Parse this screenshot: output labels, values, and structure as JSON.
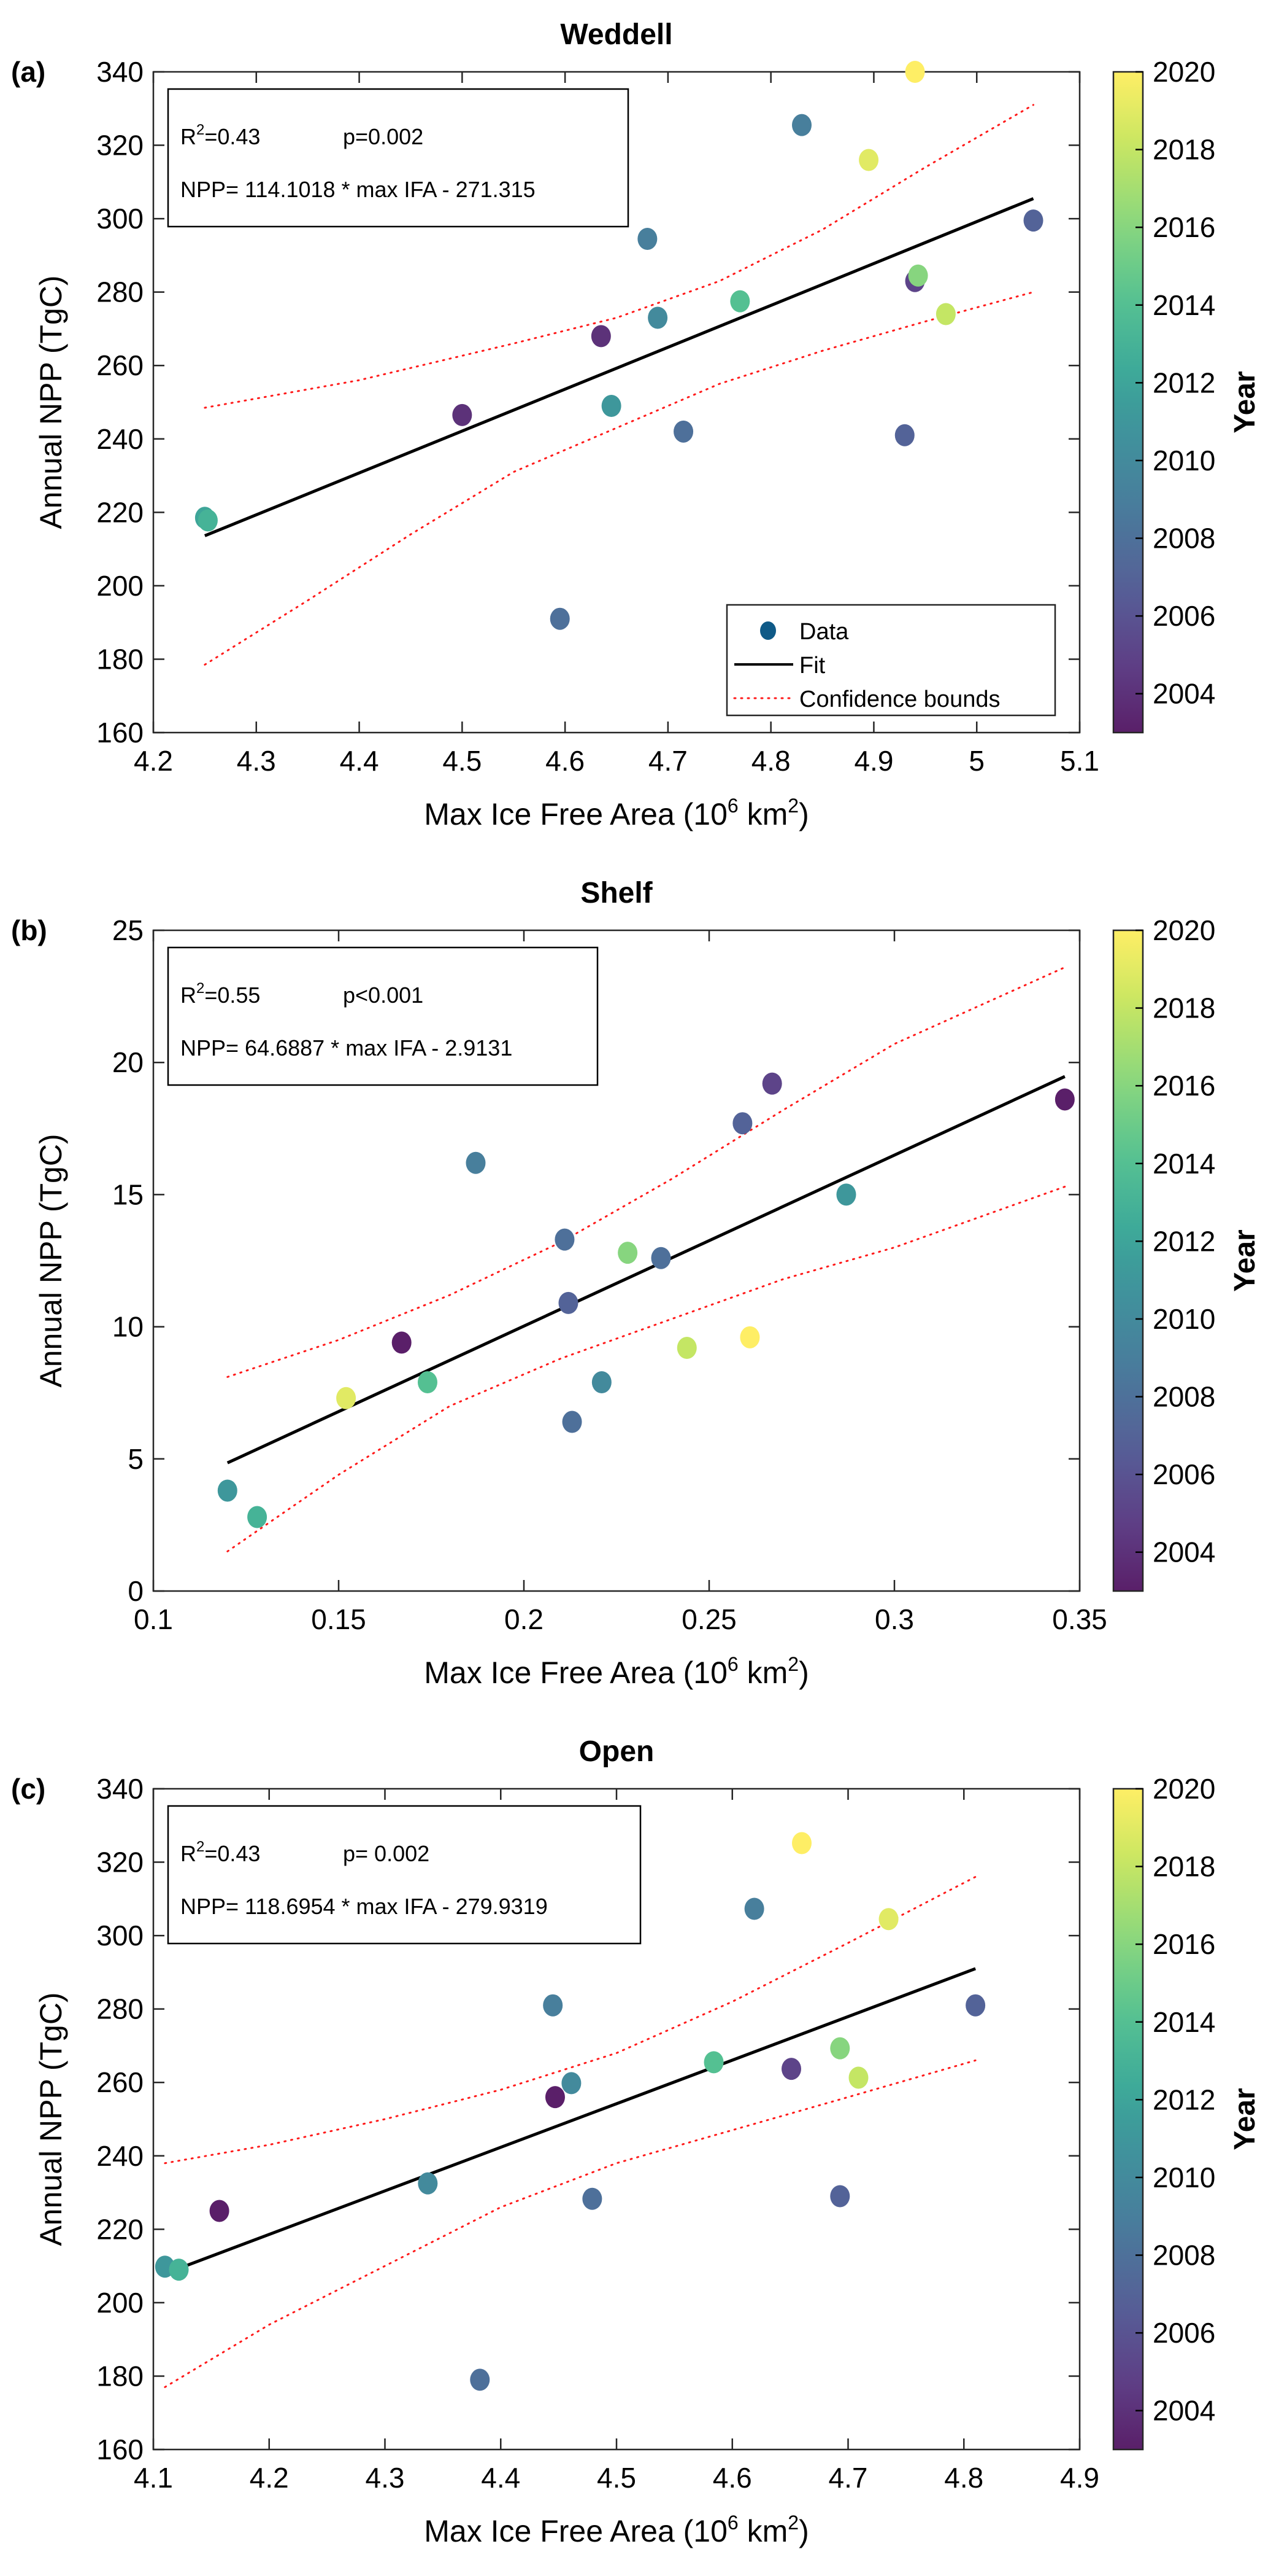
{
  "colorbar": {
    "title": "Year",
    "range": [
      2003,
      2020
    ],
    "ticks": [
      "2004",
      "2006",
      "2008",
      "2010",
      "2012",
      "2014",
      "2016",
      "2018",
      "2020"
    ],
    "colormap": "viridis"
  },
  "legend_a": {
    "entries": [
      "Data",
      "Fit",
      "Confidence bounds"
    ],
    "placement": "bottom-right"
  },
  "chart_data": [
    {
      "type": "scatter",
      "panel_tag": "(a)",
      "title": "Weddell",
      "xlabel": "Max Ice Free Area (10^6 km^2)",
      "xlabel_parts": [
        "Max Ice Free Area (10",
        "6",
        " km",
        "2",
        ")"
      ],
      "ylabel": "Annual NPP (TgC)",
      "xlim": [
        4.2,
        5.1
      ],
      "ylim": [
        160,
        340
      ],
      "xticks": [
        "4.2",
        "4.3",
        "4.4",
        "4.5",
        "4.6",
        "4.7",
        "4.8",
        "4.9",
        "5",
        "5.1"
      ],
      "yticks": [
        "160",
        "180",
        "200",
        "220",
        "240",
        "260",
        "280",
        "300",
        "320",
        "340"
      ],
      "stats": {
        "r2_label": "R",
        "r2_sup": "2",
        "r2_value": "=0.43",
        "p": "p=0.002",
        "equation": "NPP= 114.1018 * max IFA - 271.315"
      },
      "fit": {
        "slope": 114.1018,
        "intercept": -271.315,
        "x_range": [
          4.25,
          5.055
        ]
      },
      "confidence_bounds": {
        "upper": [
          [
            4.25,
            248.5
          ],
          [
            4.4,
            256
          ],
          [
            4.55,
            266
          ],
          [
            4.65,
            273
          ],
          [
            4.75,
            283
          ],
          [
            4.85,
            297
          ],
          [
            4.95,
            314
          ],
          [
            5.055,
            331
          ]
        ],
        "lower": [
          [
            4.25,
            178.5
          ],
          [
            4.35,
            196
          ],
          [
            4.45,
            214
          ],
          [
            4.55,
            231
          ],
          [
            4.65,
            243
          ],
          [
            4.75,
            255
          ],
          [
            4.85,
            264
          ],
          [
            4.95,
            272
          ],
          [
            5.055,
            280
          ]
        ]
      },
      "points": [
        {
          "x": 4.25,
          "y": 218.5,
          "year": 2012
        },
        {
          "x": 4.253,
          "y": 217.8,
          "year": 2013
        },
        {
          "x": 4.5,
          "y": 246.5,
          "year": 2004
        },
        {
          "x": 4.595,
          "y": 191,
          "year": 2008
        },
        {
          "x": 4.635,
          "y": 268,
          "year": 2004
        },
        {
          "x": 4.645,
          "y": 249,
          "year": 2011
        },
        {
          "x": 4.68,
          "y": 294.5,
          "year": 2009
        },
        {
          "x": 4.69,
          "y": 273,
          "year": 2010
        },
        {
          "x": 4.715,
          "y": 242,
          "year": 2008
        },
        {
          "x": 4.77,
          "y": 277.5,
          "year": 2014
        },
        {
          "x": 4.83,
          "y": 325.5,
          "year": 2009
        },
        {
          "x": 4.895,
          "y": 316,
          "year": 2019
        },
        {
          "x": 4.93,
          "y": 241,
          "year": 2007
        },
        {
          "x": 4.94,
          "y": 283,
          "year": 2005
        },
        {
          "x": 4.943,
          "y": 284.5,
          "year": 2016
        },
        {
          "x": 4.94,
          "y": 340,
          "year": 2020
        },
        {
          "x": 4.97,
          "y": 274,
          "year": 2018
        },
        {
          "x": 5.055,
          "y": 299.5,
          "year": 2007
        }
      ]
    },
    {
      "type": "scatter",
      "panel_tag": "(b)",
      "title": "Shelf",
      "xlabel": "Max Ice Free Area (10^6 km^2)",
      "xlabel_parts": [
        "Max Ice Free Area (10",
        "6",
        " km",
        "2",
        ")"
      ],
      "ylabel": "Annual NPP (TgC)",
      "xlim": [
        0.1,
        0.35
      ],
      "ylim": [
        0,
        25
      ],
      "xticks": [
        "0.1",
        "0.15",
        "0.2",
        "0.25",
        "0.3",
        "0.35"
      ],
      "yticks": [
        "0",
        "5",
        "10",
        "15",
        "20",
        "25"
      ],
      "stats": {
        "r2_label": "R",
        "r2_sup": "2",
        "r2_value": "=0.55",
        "p": "p<0.001",
        "equation": "NPP= 64.6887 * max IFA - 2.9131"
      },
      "fit": {
        "slope": 64.6887,
        "intercept": -2.9131,
        "x_range": [
          0.12,
          0.346
        ]
      },
      "confidence_bounds": {
        "upper": [
          [
            0.12,
            8.1
          ],
          [
            0.15,
            9.5
          ],
          [
            0.18,
            11.2
          ],
          [
            0.21,
            13.2
          ],
          [
            0.24,
            15.6
          ],
          [
            0.27,
            18.2
          ],
          [
            0.3,
            20.7
          ],
          [
            0.346,
            23.6
          ]
        ],
        "lower": [
          [
            0.12,
            1.5
          ],
          [
            0.15,
            4.4
          ],
          [
            0.18,
            7.0
          ],
          [
            0.21,
            8.8
          ],
          [
            0.24,
            10.3
          ],
          [
            0.27,
            11.8
          ],
          [
            0.3,
            13.0
          ],
          [
            0.346,
            15.3
          ]
        ]
      },
      "points": [
        {
          "x": 0.12,
          "y": 3.8,
          "year": 2011
        },
        {
          "x": 0.128,
          "y": 2.8,
          "year": 2013
        },
        {
          "x": 0.152,
          "y": 7.3,
          "year": 2019
        },
        {
          "x": 0.167,
          "y": 9.4,
          "year": 2003
        },
        {
          "x": 0.174,
          "y": 7.9,
          "year": 2014
        },
        {
          "x": 0.187,
          "y": 16.2,
          "year": 2009
        },
        {
          "x": 0.211,
          "y": 13.3,
          "year": 2008
        },
        {
          "x": 0.212,
          "y": 10.9,
          "year": 2007
        },
        {
          "x": 0.213,
          "y": 6.4,
          "year": 2008
        },
        {
          "x": 0.221,
          "y": 7.9,
          "year": 2010
        },
        {
          "x": 0.228,
          "y": 12.8,
          "year": 2016
        },
        {
          "x": 0.237,
          "y": 12.6,
          "year": 2008
        },
        {
          "x": 0.244,
          "y": 9.2,
          "year": 2018
        },
        {
          "x": 0.259,
          "y": 17.7,
          "year": 2007
        },
        {
          "x": 0.261,
          "y": 9.6,
          "year": 2020
        },
        {
          "x": 0.267,
          "y": 19.2,
          "year": 2005
        },
        {
          "x": 0.287,
          "y": 15.0,
          "year": 2011
        },
        {
          "x": 0.346,
          "y": 18.6,
          "year": 2003
        }
      ]
    },
    {
      "type": "scatter",
      "panel_tag": "(c)",
      "title": "Open",
      "xlabel": "Max Ice Free Area (10^6 km^2)",
      "xlabel_parts": [
        "Max Ice Free Area (10",
        "6",
        " km",
        "2",
        ")"
      ],
      "ylabel": "Annual NPP (TgC)",
      "xlim": [
        4.1,
        4.9
      ],
      "ylim": [
        160,
        340
      ],
      "xticks": [
        "4.1",
        "4.2",
        "4.3",
        "4.4",
        "4.5",
        "4.6",
        "4.7",
        "4.8",
        "4.9"
      ],
      "yticks": [
        "160",
        "180",
        "200",
        "220",
        "240",
        "260",
        "280",
        "300",
        "320",
        "340"
      ],
      "stats": {
        "r2_label": "R",
        "r2_sup": "2",
        "r2_value": "=0.43",
        "p": "p= 0.002",
        "equation": "NPP= 118.6954 * max IFA - 279.9319"
      },
      "fit": {
        "slope": 118.6954,
        "intercept": -279.9319,
        "x_range": [
          4.11,
          4.81
        ]
      },
      "confidence_bounds": {
        "upper": [
          [
            4.11,
            238
          ],
          [
            4.2,
            243
          ],
          [
            4.3,
            250
          ],
          [
            4.4,
            258
          ],
          [
            4.5,
            268
          ],
          [
            4.6,
            282
          ],
          [
            4.7,
            298
          ],
          [
            4.81,
            316
          ]
        ],
        "lower": [
          [
            4.11,
            177
          ],
          [
            4.2,
            194
          ],
          [
            4.3,
            210
          ],
          [
            4.4,
            226
          ],
          [
            4.5,
            238
          ],
          [
            4.6,
            247
          ],
          [
            4.7,
            256
          ],
          [
            4.81,
            266
          ]
        ]
      },
      "points": [
        {
          "x": 4.11,
          "y": 209.8,
          "year": 2011
        },
        {
          "x": 4.122,
          "y": 209,
          "year": 2013
        },
        {
          "x": 4.157,
          "y": 225,
          "year": 2003
        },
        {
          "x": 4.337,
          "y": 232.5,
          "year": 2010
        },
        {
          "x": 4.382,
          "y": 179,
          "year": 2008
        },
        {
          "x": 4.445,
          "y": 281,
          "year": 2009
        },
        {
          "x": 4.447,
          "y": 256,
          "year": 2003
        },
        {
          "x": 4.461,
          "y": 259.8,
          "year": 2010
        },
        {
          "x": 4.479,
          "y": 228.3,
          "year": 2008
        },
        {
          "x": 4.584,
          "y": 265.5,
          "year": 2014
        },
        {
          "x": 4.619,
          "y": 307.3,
          "year": 2009
        },
        {
          "x": 4.66,
          "y": 325.2,
          "year": 2020
        },
        {
          "x": 4.651,
          "y": 263.7,
          "year": 2005
        },
        {
          "x": 4.693,
          "y": 229,
          "year": 2007
        },
        {
          "x": 4.693,
          "y": 269.3,
          "year": 2016
        },
        {
          "x": 4.709,
          "y": 261.3,
          "year": 2018
        },
        {
          "x": 4.735,
          "y": 304.5,
          "year": 2019
        },
        {
          "x": 4.81,
          "y": 281,
          "year": 2007
        }
      ]
    }
  ]
}
